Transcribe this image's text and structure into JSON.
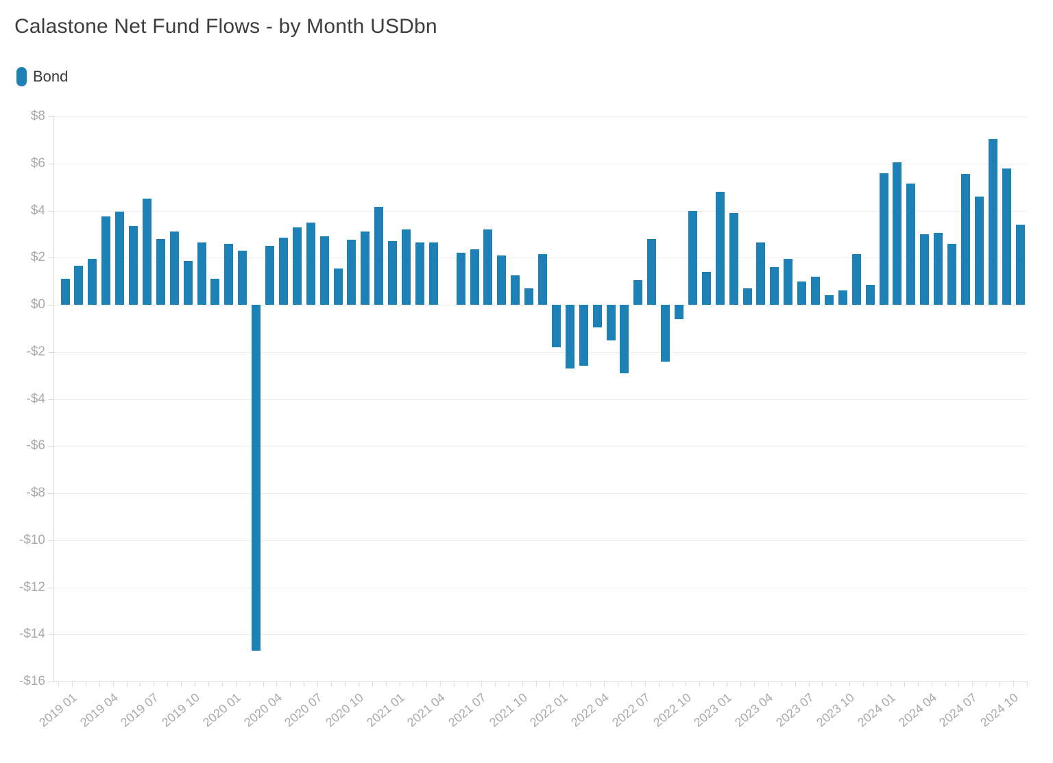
{
  "chart_data": {
    "type": "bar",
    "title": "Calastone Net Fund Flows - by Month USDbn",
    "series_name": "Bond",
    "legend": [
      {
        "label": "Bond",
        "color": "#1e81b6"
      }
    ],
    "legend_position": "top-left",
    "grid": "horizontal",
    "ylim": [
      -16,
      8
    ],
    "ytick_step": 2,
    "ytick_labels": [
      "$8",
      "$6",
      "$4",
      "$2",
      "$0",
      "-$2",
      "-$4",
      "-$6",
      "-$8",
      "-$10",
      "-$12",
      "-$14",
      "-$16"
    ],
    "xtick_label_every": 3,
    "xlabel": "",
    "ylabel": "",
    "categories": [
      "2019 01",
      "2019 02",
      "2019 03",
      "2019 04",
      "2019 05",
      "2019 06",
      "2019 07",
      "2019 08",
      "2019 09",
      "2019 10",
      "2019 11",
      "2019 12",
      "2020 01",
      "2020 02",
      "2020 03",
      "2020 04",
      "2020 05",
      "2020 06",
      "2020 07",
      "2020 08",
      "2020 09",
      "2020 10",
      "2020 11",
      "2020 12",
      "2021 01",
      "2021 02",
      "2021 03",
      "2021 04",
      "2021 05",
      "2021 06",
      "2021 07",
      "2021 08",
      "2021 09",
      "2021 10",
      "2021 11",
      "2021 12",
      "2022 01",
      "2022 02",
      "2022 03",
      "2022 04",
      "2022 05",
      "2022 06",
      "2022 07",
      "2022 08",
      "2022 09",
      "2022 10",
      "2022 11",
      "2022 12",
      "2023 01",
      "2023 02",
      "2023 03",
      "2023 04",
      "2023 05",
      "2023 06",
      "2023 07",
      "2023 08",
      "2023 09",
      "2023 10",
      "2023 11",
      "2023 12",
      "2024 01",
      "2024 02",
      "2024 03",
      "2024 04",
      "2024 05",
      "2024 06",
      "2024 07",
      "2024 08",
      "2024 09",
      "2024 10",
      "2024 11"
    ],
    "values": [
      1.1,
      1.65,
      1.95,
      3.75,
      3.95,
      3.35,
      4.5,
      2.8,
      3.1,
      1.85,
      2.65,
      1.1,
      2.6,
      2.3,
      -14.7,
      2.5,
      2.85,
      3.3,
      3.5,
      2.9,
      1.55,
      2.75,
      3.1,
      4.15,
      2.7,
      3.2,
      2.65,
      2.65,
      0,
      2.2,
      2.35,
      3.2,
      2.1,
      1.25,
      0.7,
      2.15,
      -1.8,
      -2.7,
      -2.6,
      -0.95,
      -1.5,
      -2.9,
      1.05,
      2.8,
      -2.4,
      -0.6,
      4.0,
      1.4,
      4.8,
      3.9,
      0.7,
      2.65,
      1.6,
      1.95,
      1.0,
      1.2,
      0.4,
      0.6,
      2.15,
      0.85,
      5.6,
      6.05,
      5.15,
      3.0,
      3.05,
      2.6,
      5.55,
      4.6,
      7.05,
      5.8,
      3.4
    ],
    "colors": {
      "bar": "#1e81b6",
      "title_text": "#3d3d3d",
      "legend_text": "#383838",
      "axis_label": "#a9a9a9",
      "gridline": "#eeeeee",
      "axis_line": "#d9d9d9",
      "background": "#ffffff"
    }
  }
}
